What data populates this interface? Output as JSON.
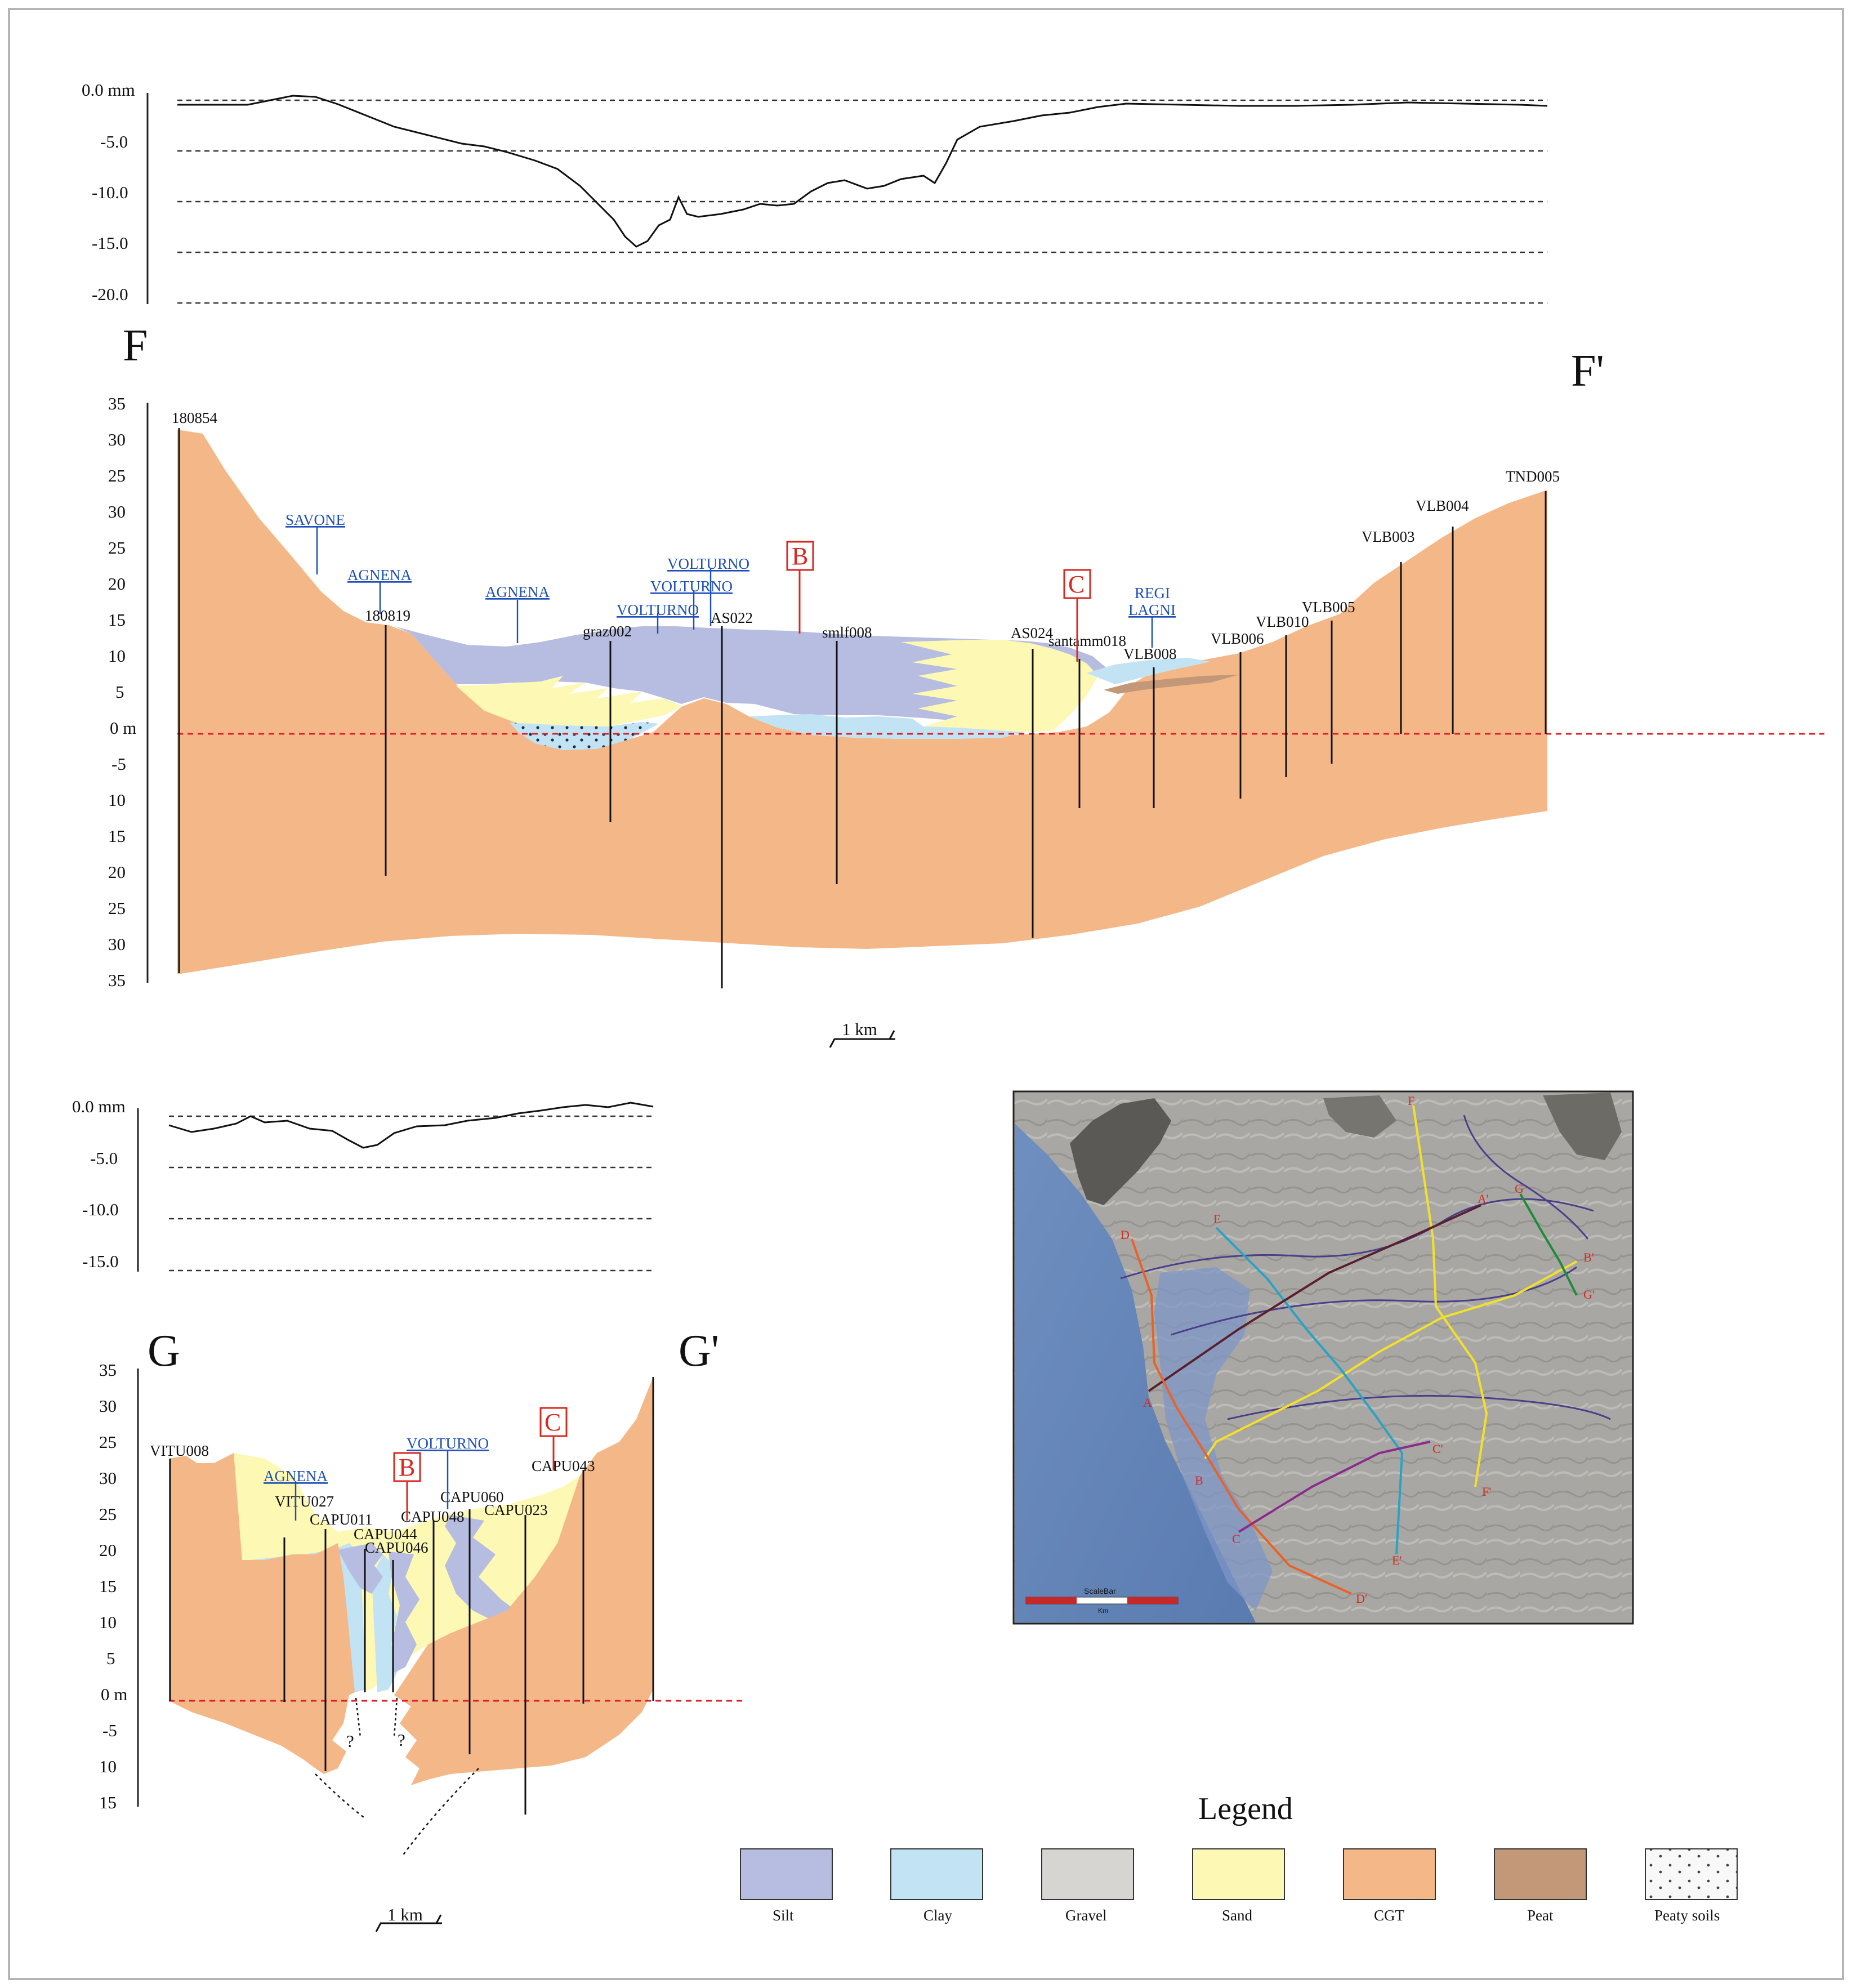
{
  "colors": {
    "silt": "#b7bde0",
    "clay": "#c2e3f3",
    "gravel": "#d7d5d2",
    "sand": "#fdf8b4",
    "cgt": "#f4b787",
    "peat": "#c39878",
    "peaty_soils": "#f8f8f8",
    "river_text": "#1f4fb8",
    "marker_red": "#d62a20",
    "sea_level_line": "#e0202a"
  },
  "panel_f": {
    "subsidence": {
      "y_labels": [
        "0.0 mm",
        "-5.0",
        "-10.0",
        "-15.0",
        "-20.0"
      ],
      "y_range_mm": [
        0,
        -20
      ]
    },
    "section_start": "F",
    "section_end": "F'",
    "depth_labels": [
      "35",
      "30",
      "25",
      "30",
      "25",
      "20",
      "15",
      "10",
      "5",
      "0 m",
      "-5",
      "10",
      "15",
      "20",
      "25",
      "30",
      "35"
    ],
    "wells": [
      "180854",
      "180819",
      "graz002",
      "AS022",
      "smlf008",
      "AS024",
      "santamm018",
      "VLB008",
      "VLB006",
      "VLB010",
      "VLB005",
      "VLB003",
      "VLB004",
      "TND005"
    ],
    "rivers": [
      "SAVONE",
      "AGNENA",
      "AGNENA",
      "VOLTURNO",
      "VOLTURNO",
      "VOLTURNO",
      "REGI",
      "LAGNI"
    ],
    "markers": [
      "B",
      "C"
    ],
    "scale_label": "1 km"
  },
  "panel_g": {
    "subsidence": {
      "y_labels": [
        "0.0 mm",
        "-5.0",
        "-10.0",
        "-15.0"
      ],
      "y_range_mm": [
        0,
        -15
      ]
    },
    "section_start": "G",
    "section_end": "G'",
    "depth_labels": [
      "35",
      "30",
      "25",
      "30",
      "25",
      "20",
      "15",
      "10",
      "5",
      "0 m",
      "-5",
      "10",
      "15"
    ],
    "wells": [
      "VITU008",
      "VITU027",
      "CAPU011",
      "CAPU044",
      "CAPU046",
      "CAPU048",
      "CAPU060",
      "CAPU023",
      "CAPU043"
    ],
    "rivers": [
      "AGNENA",
      "VOLTURNO"
    ],
    "markers": [
      "B",
      "C"
    ],
    "unknowns": [
      "?",
      "?"
    ],
    "scale_label": "1 km"
  },
  "map": {
    "scalebar_title": "ScaleBar",
    "scalebar_unit": "Km",
    "section_labels": [
      "F",
      "F'",
      "A",
      "A'",
      "E",
      "E'",
      "G",
      "G'",
      "B",
      "B'",
      "C",
      "C'",
      "D",
      "D'"
    ]
  },
  "legend": {
    "title": "Legend",
    "items": [
      {
        "label": "Silt",
        "color": "#b7bde0"
      },
      {
        "label": "Clay",
        "color": "#c2e3f3"
      },
      {
        "label": "Gravel",
        "color": "#d7d5d2"
      },
      {
        "label": "Sand",
        "color": "#fdf8b4"
      },
      {
        "label": "CGT",
        "color": "#f4b787"
      },
      {
        "label": "Peat",
        "color": "#c39878"
      },
      {
        "label": "Peaty soils",
        "color": "#f8f8f8"
      }
    ]
  }
}
